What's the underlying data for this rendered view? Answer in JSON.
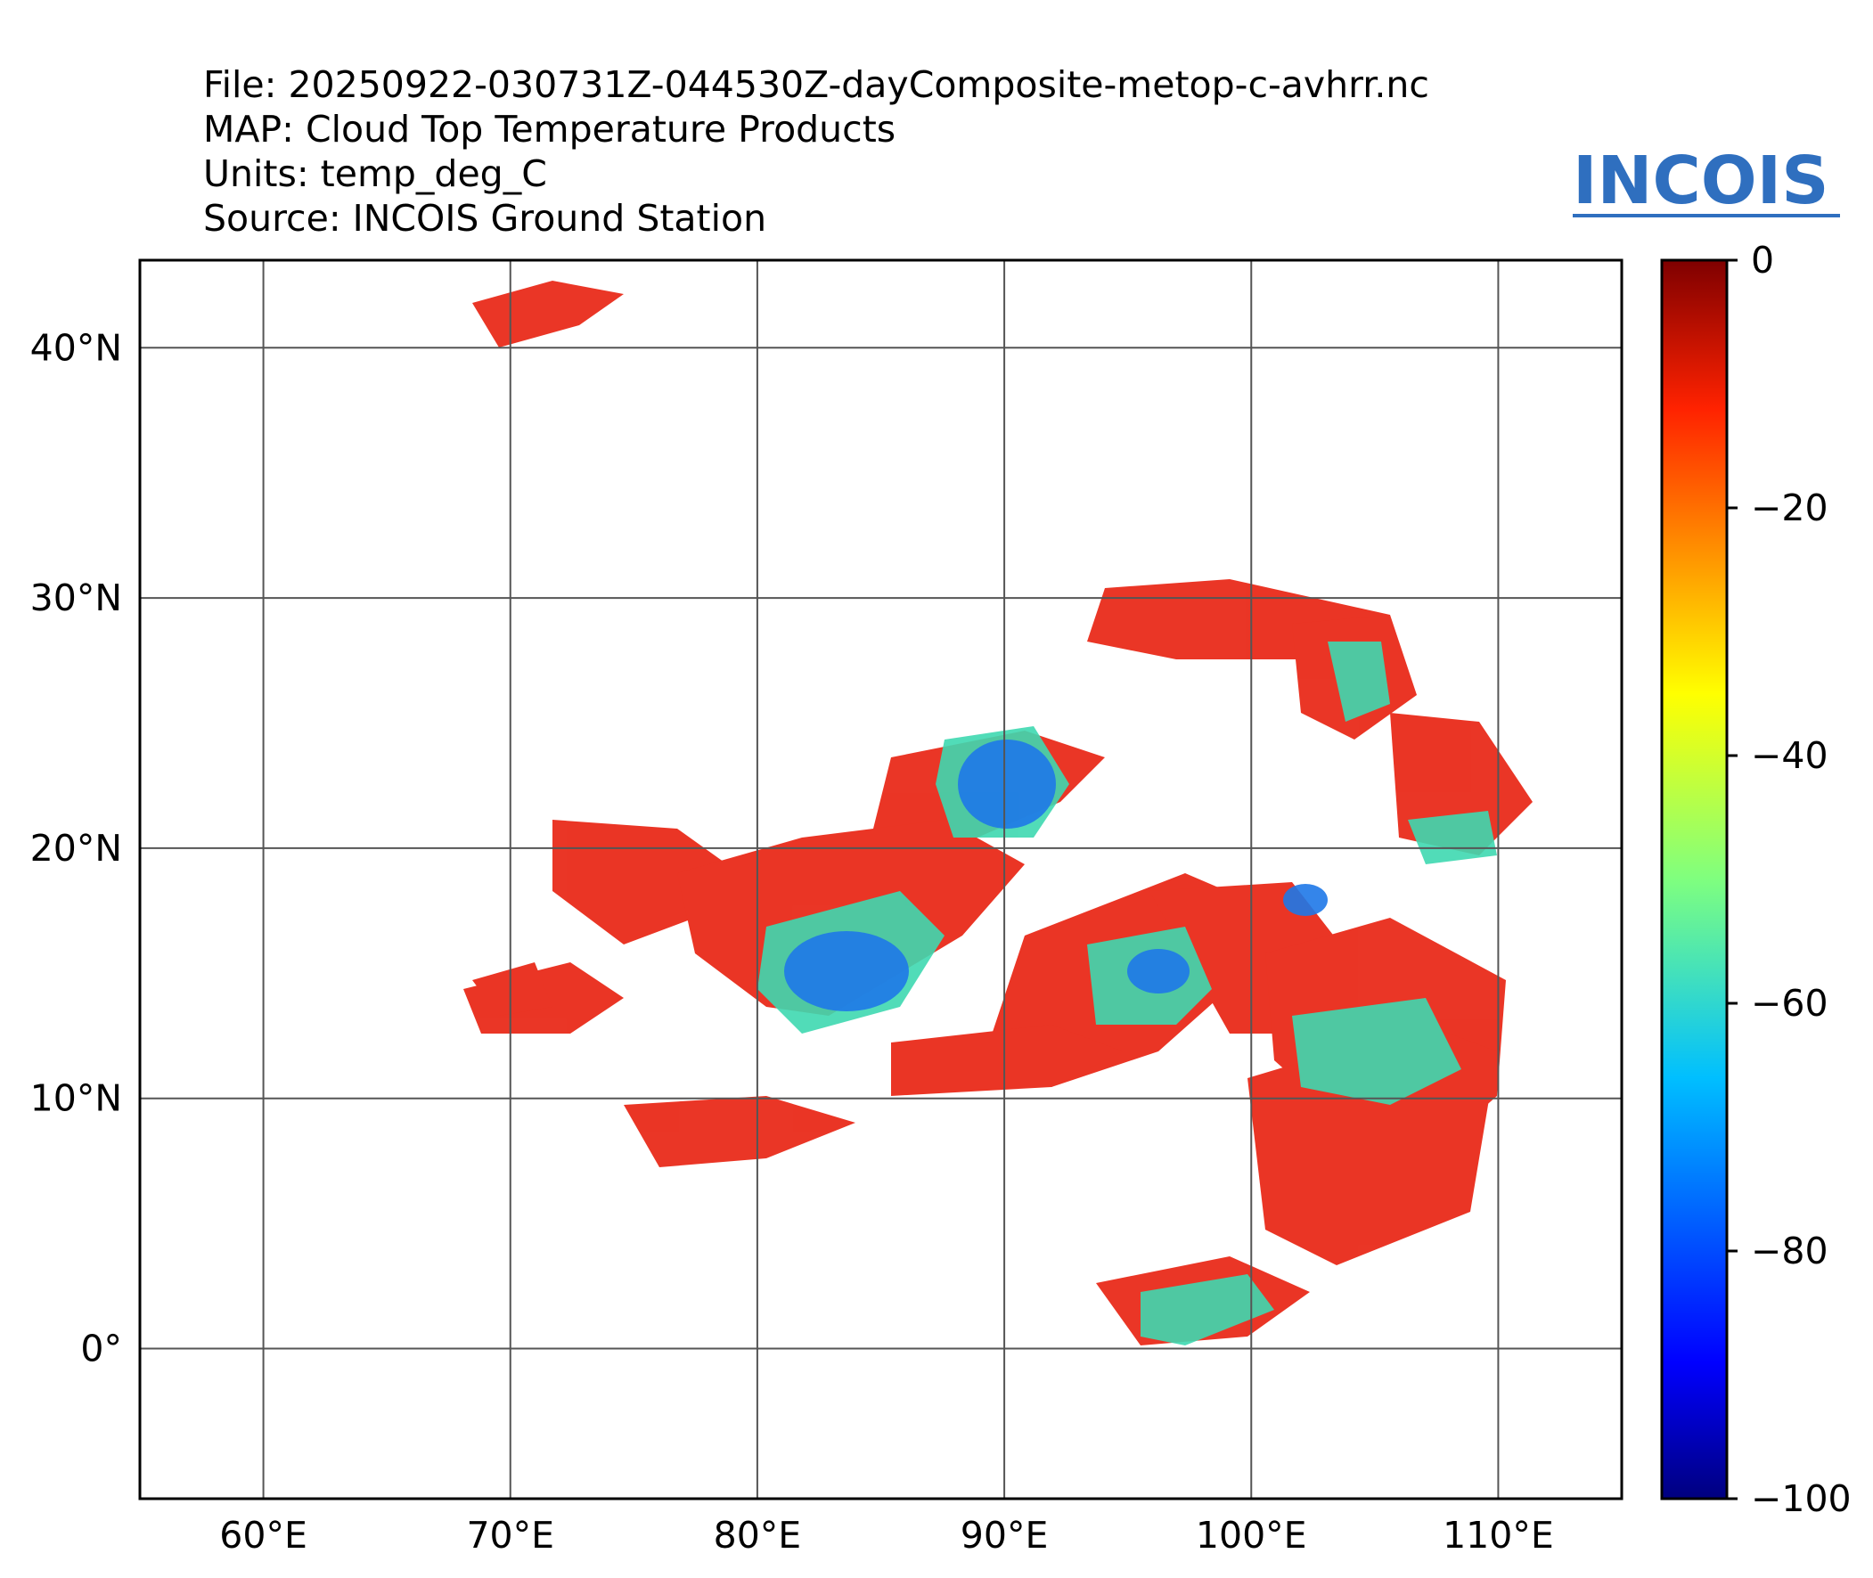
{
  "header": {
    "file": "File: 20250922-030731Z-044530Z-dayComposite-metop-c-avhrr.nc",
    "map": "MAP: Cloud Top Temperature Products",
    "units": "Units: temp_deg_C",
    "source": "Source: INCOIS Ground Station"
  },
  "logo": {
    "text": "INCOIS",
    "color": "#2f6fbf"
  },
  "map": {
    "lon_range": [
      55,
      115
    ],
    "lat_range": [
      -6,
      43.5
    ],
    "lon_ticks": [
      "60°E",
      "70°E",
      "80°E",
      "90°E",
      "100°E",
      "110°E"
    ],
    "lat_ticks": [
      "40°N",
      "30°N",
      "20°N",
      "10°N",
      "0°"
    ],
    "grid": true
  },
  "colorbar": {
    "range": [
      -100,
      0
    ],
    "ticks": [
      "0",
      "−20",
      "−40",
      "−60",
      "−80",
      "−100"
    ],
    "colormap": "jet"
  }
}
